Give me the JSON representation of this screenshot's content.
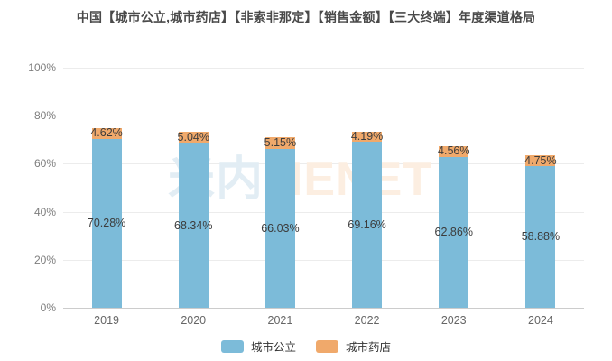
{
  "title": "中国【城市公立,城市药店】【非索非那定】【销售金额】【三大终端】年度渠道格局",
  "watermark": {
    "cn": "米内",
    "en": "MENET"
  },
  "colors": {
    "series_blue": "#7cbbd9",
    "series_orange": "#f0a96b",
    "gridline": "#ececec",
    "axis_line": "#cccccc",
    "title_text": "#4a4a4a",
    "tick_text": "#7d7d7d",
    "label_text": "#3c3c3c"
  },
  "chart_data": {
    "type": "bar",
    "stacked": true,
    "title": "中国【城市公立,城市药店】【非索非那定】【销售金额】【三大终端】年度渠道格局",
    "categories": [
      "2019",
      "2020",
      "2021",
      "2022",
      "2023",
      "2024"
    ],
    "series": [
      {
        "name": "城市公立",
        "color": "#7cbbd9",
        "values": [
          70.28,
          68.34,
          66.03,
          69.16,
          62.86,
          58.88
        ]
      },
      {
        "name": "城市药店",
        "color": "#f0a96b",
        "values": [
          4.62,
          5.04,
          5.15,
          4.19,
          4.56,
          4.75
        ]
      }
    ],
    "xlabel": "",
    "ylabel": "",
    "ylim": [
      0,
      100
    ],
    "yticks": [
      "0%",
      "20%",
      "40%",
      "60%",
      "80%",
      "100%"
    ],
    "grid": true,
    "legend_position": "bottom",
    "value_suffix": "%",
    "data_labels": true
  }
}
